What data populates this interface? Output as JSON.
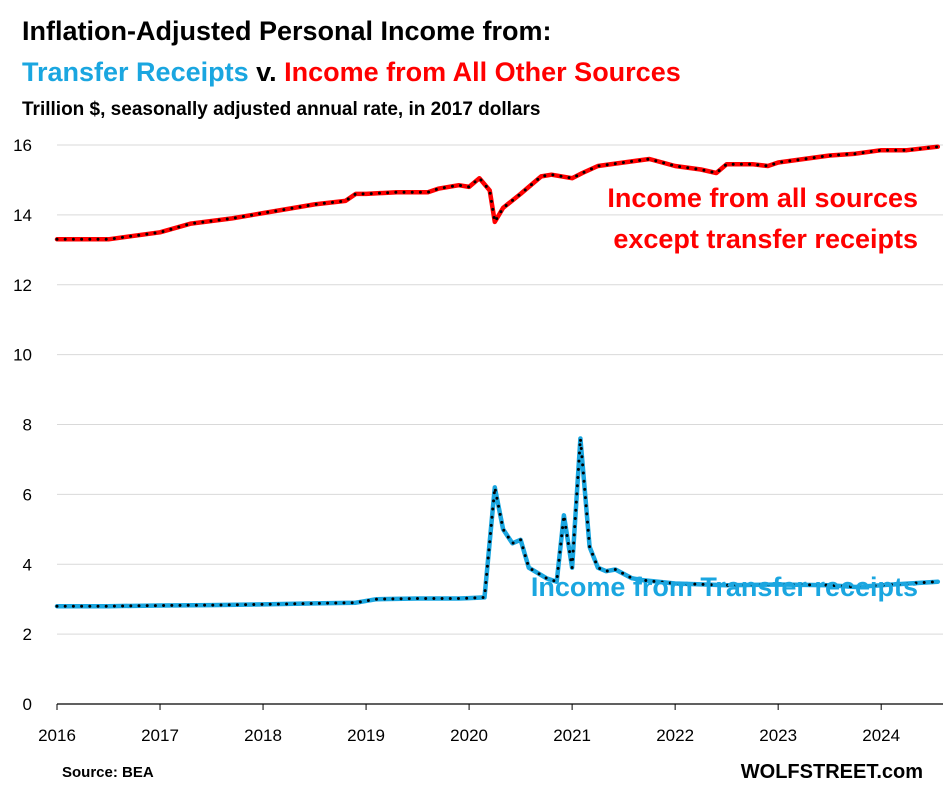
{
  "title": {
    "line1": "Inflation-Adjusted Personal Income from:",
    "line2_part1": "Transfer Receipts",
    "line2_part2": " v. ",
    "line2_part3": "Income from All Other Sources",
    "subtitle": "Trillion $, seasonally adjusted annual rate, in 2017 dollars"
  },
  "footer": {
    "source": "Source: BEA",
    "brand": "WOLFSTREET.com"
  },
  "colors": {
    "transfer": "#1aa6e0",
    "other": "#ff0000",
    "marker": "#000000",
    "axis": "#000000"
  },
  "chart_data": {
    "type": "line",
    "ylim": [
      0,
      16
    ],
    "yticks": [
      "0",
      "2",
      "4",
      "6",
      "8",
      "10",
      "12",
      "14",
      "16"
    ],
    "xlim": [
      2016,
      2024.6
    ],
    "xticks": [
      "2016",
      "2017",
      "2018",
      "2019",
      "2020",
      "2021",
      "2022",
      "2023",
      "2024"
    ],
    "annotations": {
      "other_line1": "Income from all sources",
      "other_line2": "except transfer receipts",
      "transfer": "Income from Transfer receipts"
    },
    "series": [
      {
        "key": "other",
        "x": [
          2016.0,
          2016.5,
          2017.0,
          2017.3,
          2017.7,
          2018.0,
          2018.5,
          2018.8,
          2018.9,
          2019.0,
          2019.3,
          2019.6,
          2019.7,
          2019.9,
          2020.0,
          2020.1,
          2020.2,
          2020.25,
          2020.33,
          2020.5,
          2020.7,
          2020.8,
          2021.0,
          2021.1,
          2021.25,
          2021.5,
          2021.75,
          2022.0,
          2022.25,
          2022.4,
          2022.5,
          2022.75,
          2022.9,
          2023.0,
          2023.25,
          2023.5,
          2023.75,
          2024.0,
          2024.25,
          2024.55
        ],
        "values": [
          13.3,
          13.3,
          13.5,
          13.75,
          13.9,
          14.05,
          14.3,
          14.4,
          14.6,
          14.6,
          14.65,
          14.65,
          14.75,
          14.85,
          14.8,
          15.05,
          14.7,
          13.8,
          14.2,
          14.6,
          15.1,
          15.15,
          15.05,
          15.2,
          15.4,
          15.5,
          15.6,
          15.4,
          15.3,
          15.2,
          15.45,
          15.45,
          15.4,
          15.5,
          15.6,
          15.7,
          15.75,
          15.85,
          15.85,
          15.95
        ]
      },
      {
        "key": "transfer",
        "x": [
          2016.0,
          2016.5,
          2017.0,
          2017.5,
          2018.0,
          2018.5,
          2018.9,
          2019.1,
          2019.5,
          2019.9,
          2020.0,
          2020.15,
          2020.25,
          2020.33,
          2020.42,
          2020.5,
          2020.58,
          2020.75,
          2020.85,
          2020.92,
          2021.0,
          2021.08,
          2021.17,
          2021.25,
          2021.33,
          2021.42,
          2021.58,
          2021.67,
          2022.0,
          2022.5,
          2023.0,
          2023.5,
          2023.75,
          2024.0,
          2024.55
        ],
        "values": [
          2.8,
          2.8,
          2.82,
          2.83,
          2.85,
          2.88,
          2.9,
          3.0,
          3.02,
          3.02,
          3.03,
          3.05,
          6.2,
          5.0,
          4.6,
          4.7,
          3.9,
          3.6,
          3.5,
          5.4,
          3.9,
          7.6,
          4.5,
          3.9,
          3.8,
          3.85,
          3.6,
          3.55,
          3.45,
          3.4,
          3.42,
          3.4,
          3.35,
          3.4,
          3.5
        ]
      }
    ]
  }
}
